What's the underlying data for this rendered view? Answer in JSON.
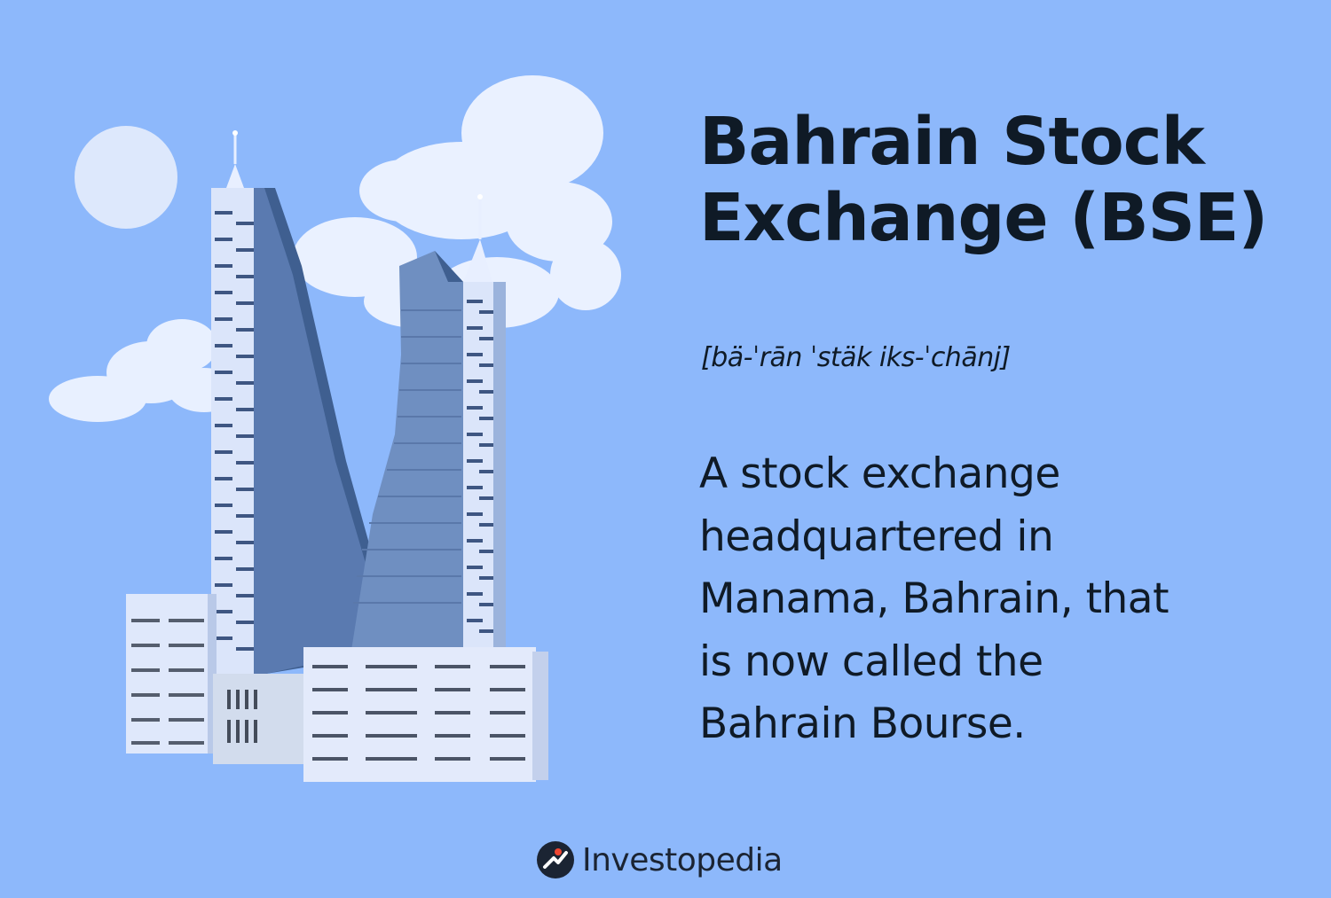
{
  "heading": {
    "title_line1": "Bahrain Stock",
    "title_line2": "Exchange (BSE)"
  },
  "pronunciation": "[bä-ˈrān ˈstäk iks-ˈchānj]",
  "definition": {
    "line1": "A stock exchange",
    "line2": "headquartered in",
    "line3": "Manama, Bahrain, that",
    "line4": "is now called the",
    "line5": "Bahrain Bourse."
  },
  "brand": {
    "name": "Investopedia"
  },
  "colors": {
    "background": "#8db8fb",
    "text": "#0f1a26",
    "building_dark": "#4d6c9c",
    "building_light": "#dfe8fb",
    "cloud": "#eef4ff",
    "logo_accent": "#ef4632"
  },
  "icons": {
    "logo_mark": "investopedia-logo-icon"
  }
}
